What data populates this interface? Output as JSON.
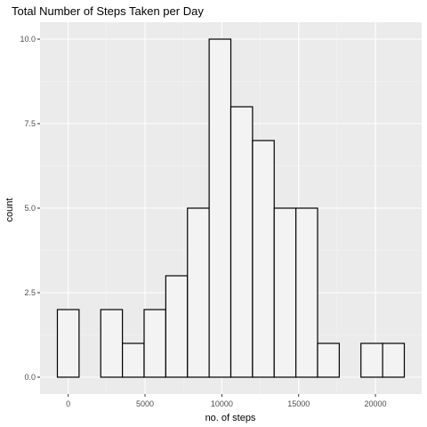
{
  "chart_data": {
    "type": "bar",
    "title": "Total Number of Steps Taken per Day",
    "xlabel": "no. of steps",
    "ylabel": "count",
    "bin_width": 1411.5,
    "bins": [
      {
        "x_start": -705.75,
        "x_end": 705.75,
        "count": 2
      },
      {
        "x_start": 705.75,
        "x_end": 2117.25,
        "count": 0
      },
      {
        "x_start": 2117.25,
        "x_end": 3528.75,
        "count": 2
      },
      {
        "x_start": 3528.75,
        "x_end": 4940.25,
        "count": 1
      },
      {
        "x_start": 4940.25,
        "x_end": 6351.75,
        "count": 2
      },
      {
        "x_start": 6351.75,
        "x_end": 7763.25,
        "count": 3
      },
      {
        "x_start": 7763.25,
        "x_end": 9174.75,
        "count": 5
      },
      {
        "x_start": 9174.75,
        "x_end": 10586.25,
        "count": 10
      },
      {
        "x_start": 10586.25,
        "x_end": 11997.75,
        "count": 8
      },
      {
        "x_start": 11997.75,
        "x_end": 13409.25,
        "count": 7
      },
      {
        "x_start": 13409.25,
        "x_end": 14820.75,
        "count": 5
      },
      {
        "x_start": 14820.75,
        "x_end": 16232.25,
        "count": 5
      },
      {
        "x_start": 16232.25,
        "x_end": 17643.75,
        "count": 1
      },
      {
        "x_start": 17643.75,
        "x_end": 19055.25,
        "count": 0
      },
      {
        "x_start": 19055.25,
        "x_end": 20466.75,
        "count": 1
      },
      {
        "x_start": 20466.75,
        "x_end": 21878.25,
        "count": 1
      }
    ],
    "x_ticks": [
      0,
      5000,
      10000,
      15000,
      20000
    ],
    "x_tick_labels": [
      "0",
      "5000",
      "10000",
      "15000",
      "20000"
    ],
    "y_ticks": [
      0,
      2.5,
      5,
      7.5,
      10
    ],
    "y_tick_labels": [
      "0.0",
      "2.5",
      "5.0",
      "7.5",
      "10.0"
    ],
    "xlim": [
      -1835,
      23008
    ],
    "ylim": [
      -0.5,
      10.5
    ],
    "grid": true,
    "colors": {
      "panel_background": "#ebebeb",
      "grid_major": "#ffffff",
      "grid_minor": "#f5f5f5",
      "bar_fill": "#f3f3f3",
      "bar_outline": "#000000",
      "tick_label": "#4d4d4d"
    }
  }
}
